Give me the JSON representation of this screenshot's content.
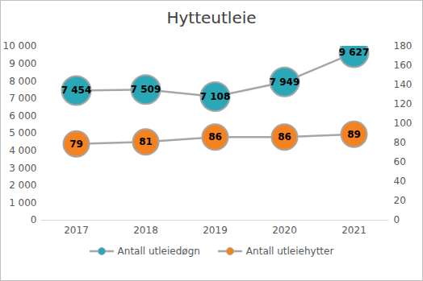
{
  "chart_data": {
    "type": "line",
    "title": "Hytteutleie",
    "categories": [
      "2017",
      "2018",
      "2019",
      "2020",
      "2021"
    ],
    "series": [
      {
        "name": "Antall utleiedøgn",
        "color": "#2aa8b8",
        "marker": "circle",
        "values": [
          7454,
          7509,
          7108,
          7949,
          9627
        ],
        "value_labels": [
          "7 454",
          "7 509",
          "7 108",
          "7 949",
          "9 627"
        ]
      },
      {
        "name": "Antall utleiehytter",
        "color": "#f58220",
        "marker": "circle",
        "axis": "y2",
        "values": [
          79,
          81,
          86,
          86,
          89
        ]
      }
    ],
    "ylim": [
      0,
      10000
    ],
    "yticks": [
      0,
      {
        "value": 1000,
        "label": "1 000"
      },
      {
        "value": 2000,
        "label": "2 000"
      },
      {
        "value": 3000,
        "label": "3 000"
      },
      {
        "value": 4000,
        "label": "4 000"
      },
      {
        "value": 5000,
        "label": "5 000"
      },
      {
        "value": 6000,
        "label": "6 000"
      },
      {
        "value": 7000,
        "label": "7 000"
      },
      {
        "value": 8000,
        "label": "8 000"
      },
      {
        "value": 9000,
        "label": "9 000"
      },
      {
        "value": 10000,
        "label": "10 000"
      }
    ],
    "y2lim": [
      0,
      180
    ],
    "y2ticks": [
      0,
      20,
      40,
      60,
      80,
      100,
      120,
      140,
      160,
      180
    ],
    "data_labels": true,
    "legend": "bottom",
    "grid": false
  }
}
